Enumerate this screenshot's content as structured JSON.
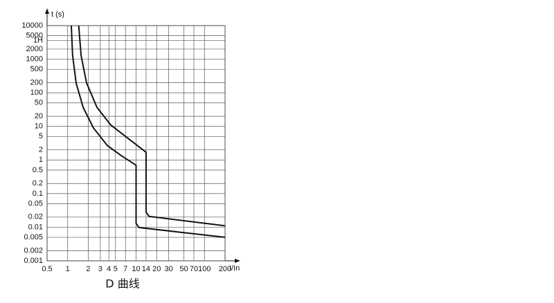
{
  "chart_data": {
    "type": "line",
    "title": "D 曲线",
    "xlabel": "I/In",
    "ylabel": "t (s)",
    "xscale": "log",
    "yscale": "log",
    "grid": true,
    "xlim": [
      0.5,
      200
    ],
    "xticks": [
      0.5,
      1,
      2,
      3,
      4,
      5,
      7,
      10,
      14,
      20,
      30,
      50,
      70,
      100,
      200
    ],
    "ylim": [
      0.001,
      10000
    ],
    "yticks": [
      0.001,
      0.002,
      0.005,
      0.01,
      0.02,
      0.05,
      0.1,
      0.2,
      0.5,
      1,
      2,
      5,
      10,
      20,
      50,
      100,
      200,
      500,
      1000,
      2000,
      {
        "value": 3600,
        "label": "1H"
      },
      5000,
      10000
    ],
    "series": [
      {
        "color": "#111111",
        "x": [
          1.13,
          1.18,
          1.33,
          1.68,
          2.38,
          3.8,
          6.05,
          10,
          10,
          11,
          200
        ],
        "values": [
          10000,
          1300,
          195,
          37,
          9,
          2.7,
          1.35,
          0.7,
          0.013,
          0.0098,
          0.005
        ]
      },
      {
        "color": "#111111",
        "x": [
          1.45,
          1.57,
          1.89,
          2.68,
          4.27,
          7.64,
          14,
          14,
          15.5,
          200
        ],
        "values": [
          10000,
          1300,
          195,
          37,
          11,
          4.4,
          1.7,
          0.028,
          0.021,
          0.011
        ]
      }
    ]
  }
}
